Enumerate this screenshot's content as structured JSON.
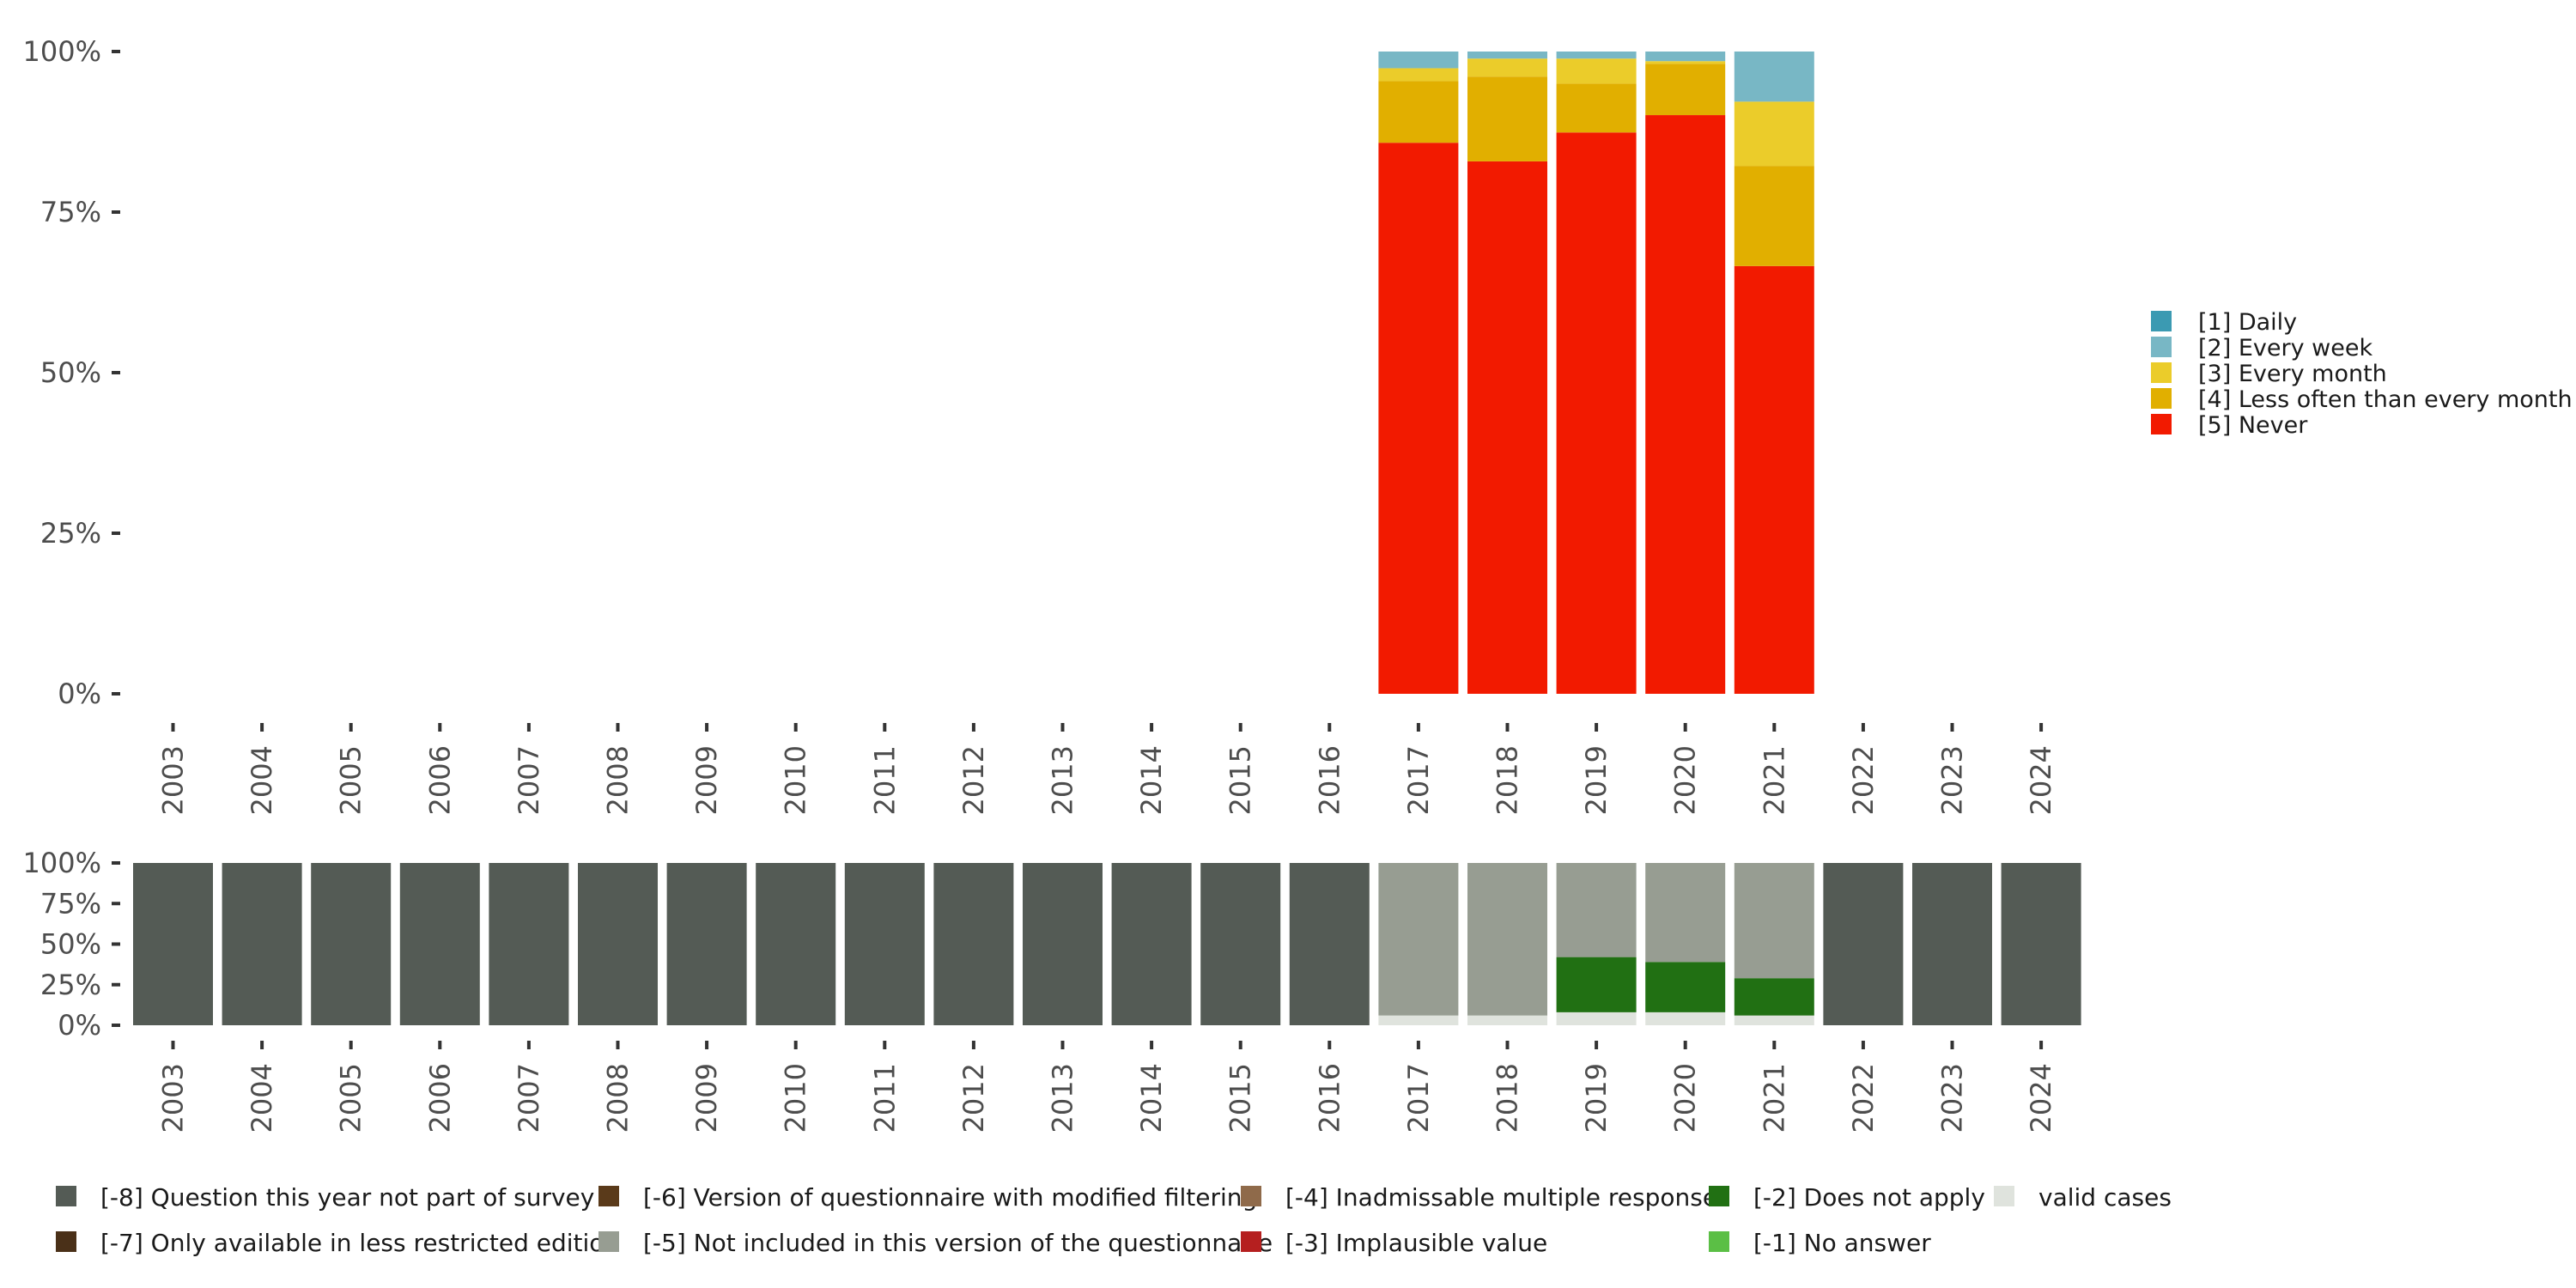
{
  "chart_data": [
    {
      "type": "bar",
      "stacked": true,
      "title": "",
      "xlabel": "",
      "ylabel": "",
      "ylim": [
        0,
        100
      ],
      "y_ticks": [
        "0%",
        "25%",
        "50%",
        "75%",
        "100%"
      ],
      "categories": [
        "2003",
        "2004",
        "2005",
        "2006",
        "2007",
        "2008",
        "2009",
        "2010",
        "2011",
        "2012",
        "2013",
        "2014",
        "2015",
        "2016",
        "2017",
        "2018",
        "2019",
        "2020",
        "2021",
        "2022",
        "2023",
        "2024"
      ],
      "legend_position": "right",
      "series": [
        {
          "name": "[5] Never",
          "color": "#f21a00",
          "values": [
            0,
            0,
            0,
            0,
            0,
            0,
            0,
            0,
            0,
            0,
            0,
            0,
            0,
            0,
            85.8,
            82.9,
            87.4,
            90.1,
            66.6,
            0,
            0,
            0
          ]
        },
        {
          "name": "[4] Less often than every month",
          "color": "#e1af00",
          "values": [
            0,
            0,
            0,
            0,
            0,
            0,
            0,
            0,
            0,
            0,
            0,
            0,
            0,
            0,
            9.6,
            13.2,
            7.6,
            8.0,
            15.6,
            0,
            0,
            0
          ]
        },
        {
          "name": "[3] Every month",
          "color": "#ebcc2a",
          "values": [
            0,
            0,
            0,
            0,
            0,
            0,
            0,
            0,
            0,
            0,
            0,
            0,
            0,
            0,
            2.0,
            2.8,
            3.9,
            0.4,
            10.0,
            0,
            0,
            0
          ]
        },
        {
          "name": "[2] Every week",
          "color": "#78b7c5",
          "values": [
            0,
            0,
            0,
            0,
            0,
            0,
            0,
            0,
            0,
            0,
            0,
            0,
            0,
            0,
            2.6,
            1.1,
            1.1,
            1.5,
            7.8,
            0,
            0,
            0
          ]
        },
        {
          "name": "[1] Daily",
          "color": "#3b9ab2",
          "values": [
            0,
            0,
            0,
            0,
            0,
            0,
            0,
            0,
            0,
            0,
            0,
            0,
            0,
            0,
            0,
            0,
            0,
            0,
            0,
            0,
            0,
            0
          ]
        }
      ],
      "legend_order": [
        "[1] Daily",
        "[2] Every week",
        "[3] Every month",
        "[4] Less often than every month",
        "[5] Never"
      ]
    },
    {
      "type": "bar",
      "stacked": true,
      "title": "",
      "xlabel": "",
      "ylabel": "",
      "ylim": [
        0,
        100
      ],
      "y_ticks": [
        "0%",
        "25%",
        "50%",
        "75%",
        "100%"
      ],
      "categories": [
        "2003",
        "2004",
        "2005",
        "2006",
        "2007",
        "2008",
        "2009",
        "2010",
        "2011",
        "2012",
        "2013",
        "2014",
        "2015",
        "2016",
        "2017",
        "2018",
        "2019",
        "2020",
        "2021",
        "2022",
        "2023",
        "2024"
      ],
      "legend_position": "bottom",
      "series": [
        {
          "name": "valid cases",
          "color": "#dfe3dd",
          "values": [
            0,
            0,
            0,
            0,
            0,
            0,
            0,
            0,
            0,
            0,
            0,
            0,
            0,
            0,
            6,
            6,
            8,
            8,
            6,
            0,
            0,
            0
          ]
        },
        {
          "name": "[-1] No answer",
          "color": "#5bbf45",
          "values": [
            0,
            0,
            0,
            0,
            0,
            0,
            0,
            0,
            0,
            0,
            0,
            0,
            0,
            0,
            0,
            0,
            0,
            0,
            0,
            0,
            0,
            0
          ]
        },
        {
          "name": "[-2] Does not apply",
          "color": "#217013",
          "values": [
            0,
            0,
            0,
            0,
            0,
            0,
            0,
            0,
            0,
            0,
            0,
            0,
            0,
            0,
            0,
            0,
            34,
            31,
            23,
            0,
            0,
            0
          ]
        },
        {
          "name": "[-3] Implausible value",
          "color": "#b51f1f",
          "values": [
            0,
            0,
            0,
            0,
            0,
            0,
            0,
            0,
            0,
            0,
            0,
            0,
            0,
            0,
            0,
            0,
            0,
            0,
            0,
            0,
            0,
            0
          ]
        },
        {
          "name": "[-4] Inadmissable multiple response",
          "color": "#8f6a4a",
          "values": [
            0,
            0,
            0,
            0,
            0,
            0,
            0,
            0,
            0,
            0,
            0,
            0,
            0,
            0,
            0,
            0,
            0,
            0,
            0,
            0,
            0,
            0
          ]
        },
        {
          "name": "[-5] Not included in this version of the questionnaire",
          "color": "#979d92",
          "values": [
            0,
            0,
            0,
            0,
            0,
            0,
            0,
            0,
            0,
            0,
            0,
            0,
            0,
            0,
            94,
            94,
            58,
            61,
            71,
            0,
            0,
            0
          ]
        },
        {
          "name": "[-6] Version of questionnaire with modified filtering",
          "color": "#5a3a1a",
          "values": [
            0,
            0,
            0,
            0,
            0,
            0,
            0,
            0,
            0,
            0,
            0,
            0,
            0,
            0,
            0,
            0,
            0,
            0,
            0,
            0,
            0,
            0
          ]
        },
        {
          "name": "[-7] Only available in less restricted edition",
          "color": "#4a3018",
          "values": [
            0,
            0,
            0,
            0,
            0,
            0,
            0,
            0,
            0,
            0,
            0,
            0,
            0,
            0,
            0,
            0,
            0,
            0,
            0,
            0,
            0,
            0
          ]
        },
        {
          "name": "[-8] Question this year not part of survey",
          "color": "#545b55",
          "values": [
            100,
            100,
            100,
            100,
            100,
            100,
            100,
            100,
            100,
            100,
            100,
            100,
            100,
            100,
            0,
            0,
            0,
            0,
            0,
            100,
            100,
            100
          ]
        }
      ],
      "legend_rows": [
        [
          "[-8] Question this year not part of survey",
          "[-6] Version of questionnaire with modified filtering",
          "[-4] Inadmissable multiple response",
          "[-2] Does not apply",
          "valid cases"
        ],
        [
          "[-7] Only available in less restricted edition",
          "[-5] Not included in this version of the questionnaire",
          "[-3] Implausible value",
          "[-1] No answer"
        ]
      ]
    }
  ]
}
